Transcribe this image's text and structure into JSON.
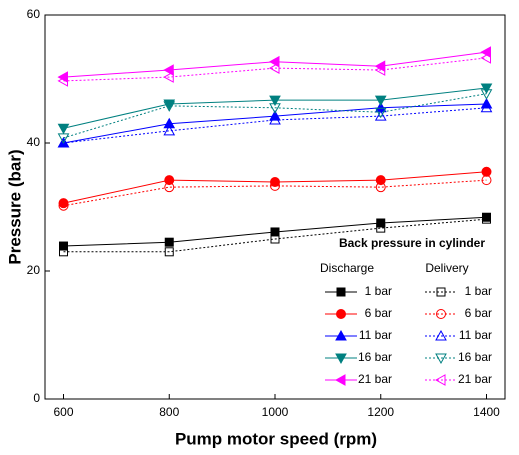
{
  "chart_data": {
    "type": "line",
    "x_label": "Pump motor speed (rpm)",
    "y_label": "Pressure (bar)",
    "x": [
      600,
      800,
      1000,
      1200,
      1400
    ],
    "xlim": [
      565,
      1435
    ],
    "xticks": [
      600,
      800,
      1000,
      1200,
      1400
    ],
    "ylim": [
      0,
      60
    ],
    "yticks": [
      0,
      20,
      40,
      60
    ],
    "legend": {
      "title": "Back pressure in cylinder",
      "columns": [
        "Discharge",
        "Delivery"
      ],
      "position": "lower right"
    },
    "series": [
      {
        "name": "1 bar",
        "color": "#000000",
        "marker": "square",
        "filled": true,
        "dashed": false,
        "values": [
          23.9,
          24.5,
          26.1,
          27.5,
          28.4
        ]
      },
      {
        "name": "6 bar",
        "color": "#ff0000",
        "marker": "circle",
        "filled": true,
        "dashed": false,
        "values": [
          30.6,
          34.2,
          33.9,
          34.2,
          35.5
        ]
      },
      {
        "name": "11 bar",
        "color": "#0000ff",
        "marker": "triangle-up",
        "filled": true,
        "dashed": false,
        "values": [
          40.0,
          43.0,
          44.2,
          45.5,
          46.1
        ]
      },
      {
        "name": "16 bar",
        "color": "#008080",
        "marker": "triangle-down",
        "filled": true,
        "dashed": false,
        "values": [
          42.3,
          46.1,
          46.7,
          46.7,
          48.6
        ]
      },
      {
        "name": "21 bar",
        "color": "#ff00ff",
        "marker": "triangle-left",
        "filled": true,
        "dashed": false,
        "values": [
          50.3,
          51.4,
          52.7,
          52.0,
          54.2
        ]
      },
      {
        "name": "1 bar",
        "color": "#000000",
        "marker": "square",
        "filled": false,
        "dashed": true,
        "values": [
          23.0,
          23.0,
          25.0,
          26.7,
          28.1
        ]
      },
      {
        "name": "6 bar",
        "color": "#ff0000",
        "marker": "circle",
        "filled": false,
        "dashed": true,
        "values": [
          30.2,
          33.1,
          33.3,
          33.1,
          34.2
        ]
      },
      {
        "name": "11 bar",
        "color": "#0000ff",
        "marker": "triangle-up",
        "filled": false,
        "dashed": true,
        "values": [
          40.0,
          41.9,
          43.6,
          44.2,
          45.5
        ]
      },
      {
        "name": "16 bar",
        "color": "#008080",
        "marker": "triangle-down",
        "filled": false,
        "dashed": true,
        "values": [
          40.8,
          45.8,
          45.5,
          44.8,
          47.7
        ]
      },
      {
        "name": "21 bar",
        "color": "#ff00ff",
        "marker": "triangle-left",
        "filled": false,
        "dashed": true,
        "values": [
          49.7,
          50.3,
          51.7,
          51.4,
          53.3
        ]
      }
    ]
  }
}
